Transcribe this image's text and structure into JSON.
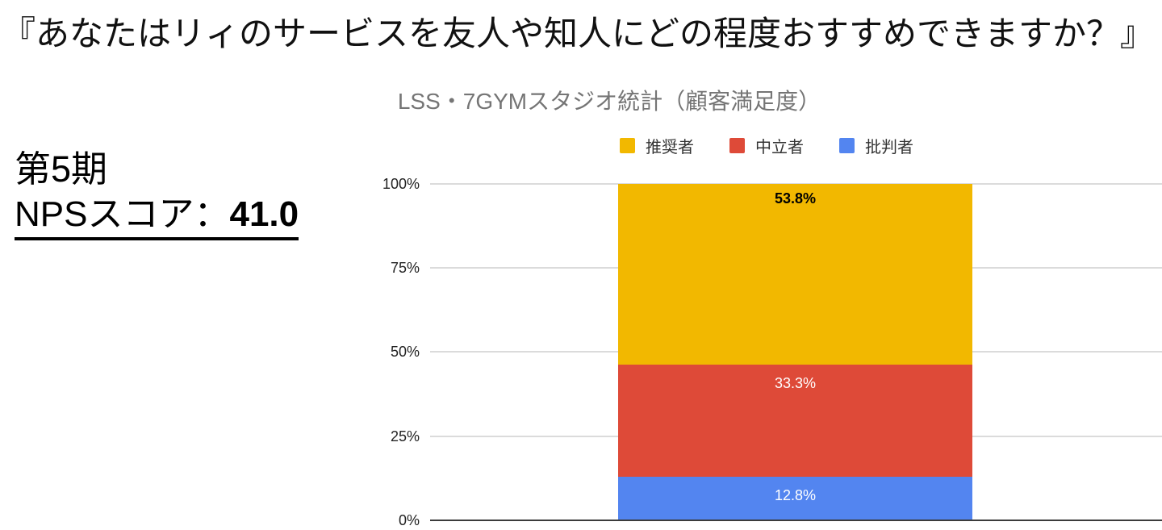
{
  "page": {
    "heading": "『あなたはリィのサービスを友人や知人にどの程度おすすめできますか？』",
    "period_label": "第5期",
    "nps_score_prefix": "NPSスコア：",
    "nps_score_value": "41.0"
  },
  "chart_data": {
    "type": "bar",
    "stacked": true,
    "title": "LSS・7GYMスタジオ統計（顧客満足度）",
    "title_color": "#757575",
    "categories": [
      "第5期"
    ],
    "series": [
      {
        "name": "推奨者",
        "value": 53.8,
        "label": "53.8%",
        "color": "#F2B800",
        "label_color": "#000000",
        "label_bold": true
      },
      {
        "name": "中立者",
        "value": 33.3,
        "label": "33.3%",
        "color": "#DE4A38",
        "label_color": "#FFFFFF",
        "label_bold": false
      },
      {
        "name": "批判者",
        "value": 12.8,
        "label": "12.8%",
        "color": "#5385F0",
        "label_color": "#FFFFFF",
        "label_bold": false
      }
    ],
    "series_order": "top-to-bottom",
    "y_axis": {
      "range": [
        0,
        100
      ],
      "unit": "%",
      "ticks": [
        {
          "value": 100,
          "label": "100%"
        },
        {
          "value": 75,
          "label": "75%"
        },
        {
          "value": 50,
          "label": "50%"
        },
        {
          "value": 25,
          "label": "25%"
        },
        {
          "value": 0,
          "label": "0%"
        }
      ]
    },
    "legend_position": "top",
    "grid": true,
    "gridline_color": "#DBDBDB",
    "axis_color": "#3C3C3C"
  }
}
